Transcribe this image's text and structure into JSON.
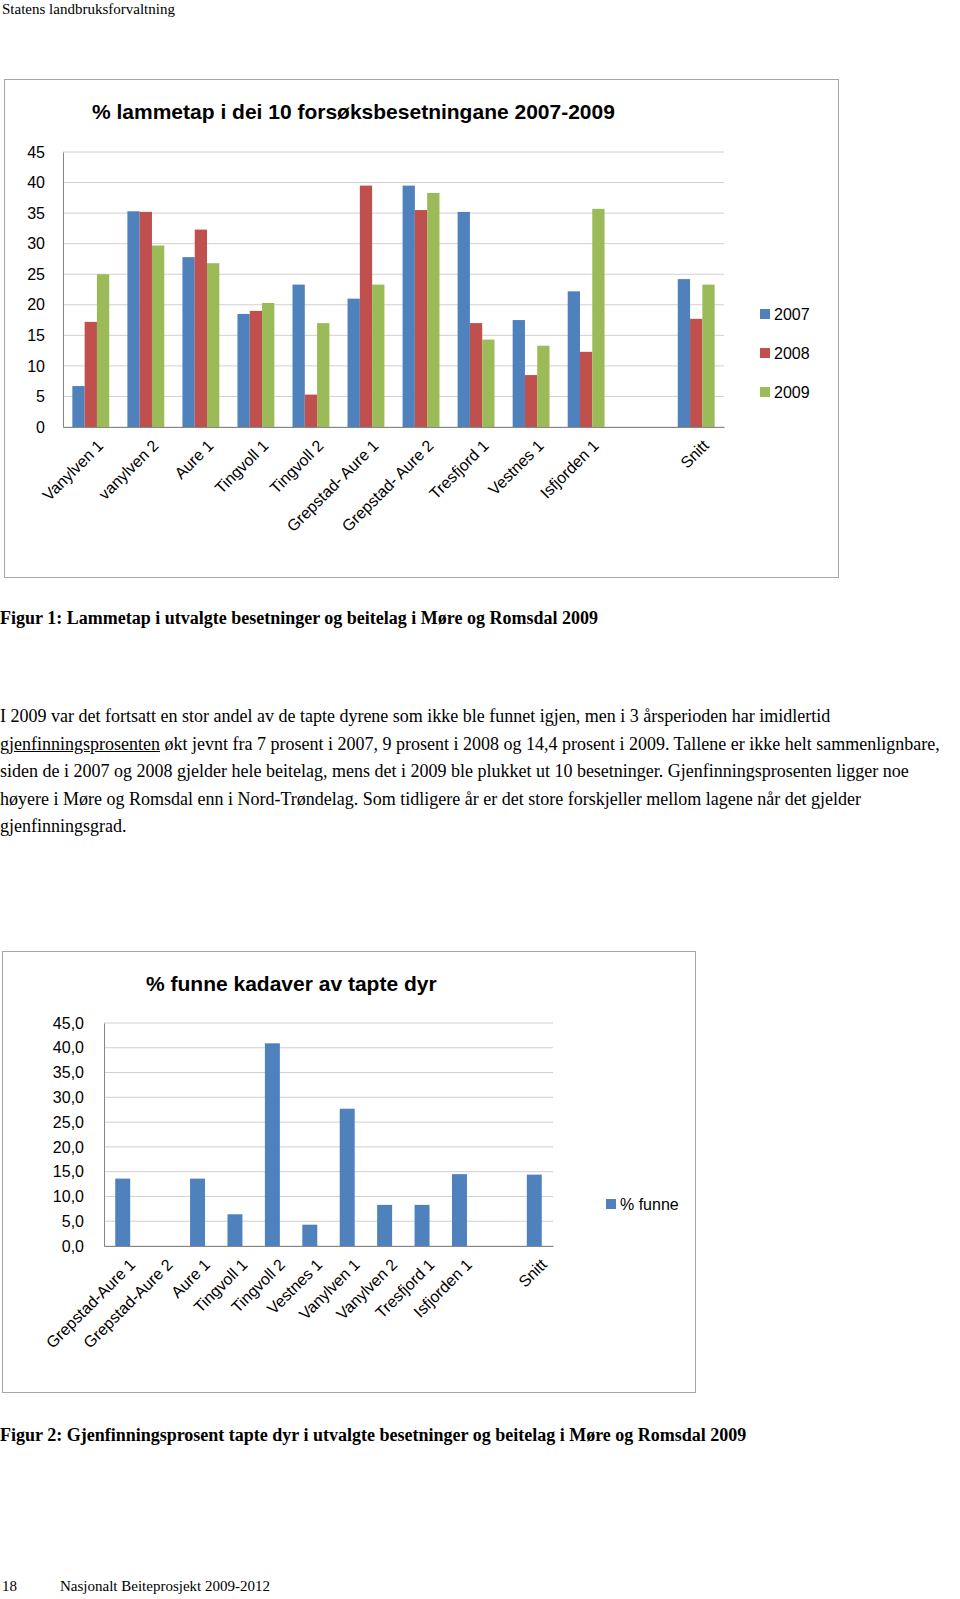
{
  "header": "Statens landbruksforvaltning",
  "chart_data": [
    {
      "type": "bar",
      "title": "% lammetap i dei 10 forsøksbesetningane 2007-2009",
      "categories": [
        "Vanylven 1",
        "vanylven 2",
        "Aure 1",
        "Tingvoll 1",
        "Tingvoll 2",
        "Grepstad- Aure 1",
        "Grepstad- Aure 2",
        "Tresfjord 1",
        "Vestnes 1",
        "Isfjorden 1",
        null,
        "Snitt"
      ],
      "series": [
        {
          "name": "2007",
          "color": "#4f81bd",
          "values": [
            6.7,
            35.3,
            27.8,
            18.5,
            23.3,
            21.0,
            39.5,
            35.2,
            17.5,
            22.2,
            null,
            24.2
          ]
        },
        {
          "name": "2008",
          "color": "#c0504d",
          "values": [
            17.2,
            35.2,
            32.3,
            19.0,
            5.3,
            39.5,
            35.5,
            17.0,
            8.5,
            12.3,
            null,
            17.7
          ]
        },
        {
          "name": "2009",
          "color": "#9bbb59",
          "values": [
            25.0,
            29.7,
            26.8,
            20.3,
            17.0,
            23.3,
            38.3,
            14.3,
            13.3,
            35.7,
            null,
            23.3
          ]
        }
      ],
      "ylim": [
        0,
        45
      ],
      "yticks": [
        0,
        5,
        10,
        15,
        20,
        25,
        30,
        35,
        40,
        45
      ],
      "grid": true,
      "legend": "right"
    },
    {
      "type": "bar",
      "title": "% funne kadaver av tapte dyr",
      "categories": [
        "Grepstad-Aure 1",
        "Grepstad-Aure 2",
        "Aure 1",
        "Tingvoll 1",
        "Tingvoll 2",
        "Vestnes 1",
        "Vanylven 1",
        "Vanylven 2",
        "Tresfjord 1",
        "Isfjorden 1",
        null,
        "Snitt"
      ],
      "series": [
        {
          "name": "% funne",
          "color": "#4f81bd",
          "values": [
            13.6,
            0,
            13.6,
            6.4,
            40.9,
            4.3,
            27.7,
            8.3,
            8.3,
            14.5,
            null,
            14.4
          ]
        }
      ],
      "ylim": [
        0,
        45
      ],
      "yticks": [
        {
          "value": 0,
          "label": "0,0"
        },
        {
          "value": 5,
          "label": "5,0"
        },
        {
          "value": 10,
          "label": "10,0"
        },
        {
          "value": 15,
          "label": "15,0"
        },
        {
          "value": 20,
          "label": "20,0"
        },
        {
          "value": 25,
          "label": "25,0"
        },
        {
          "value": 30,
          "label": "30,0"
        },
        {
          "value": 35,
          "label": "35,0"
        },
        {
          "value": 40,
          "label": "40,0"
        },
        {
          "value": 45,
          "label": "45,0"
        }
      ],
      "grid": true,
      "legend": "right"
    }
  ],
  "captions": [
    "Figur 1: Lammetap i utvalgte besetninger og beitelag i Møre og Romsdal 2009",
    "Figur 2: Gjenfinningsprosent tapte dyr i utvalgte besetninger og beitelag i Møre og Romsdal 2009"
  ],
  "paragraph": [
    "I 2009 var det fortsatt en stor andel av de tapte dyrene som ikke ble funnet igjen, men i 3 årsperioden har imidlertid ",
    "gjenfinningsprosenten",
    " økt jevnt fra 7 prosent i 2007, 9 prosent i 2008 og 14,4 prosent i 2009. Tallene er ikke helt sammenlignbare, siden de i 2007 og 2008 gjelder hele beitelag, mens det i 2009 ble plukket ut 10 besetninger.  Gjenfinningsprosenten ligger noe høyere i Møre og Romsdal enn i Nord-Trøndelag. Som tidligere år er det store forskjeller mellom lagene når det gjelder gjenfinningsgrad."
  ],
  "footer": {
    "page": "18",
    "text": "Nasjonalt Beiteprosjekt 2009-2012"
  }
}
